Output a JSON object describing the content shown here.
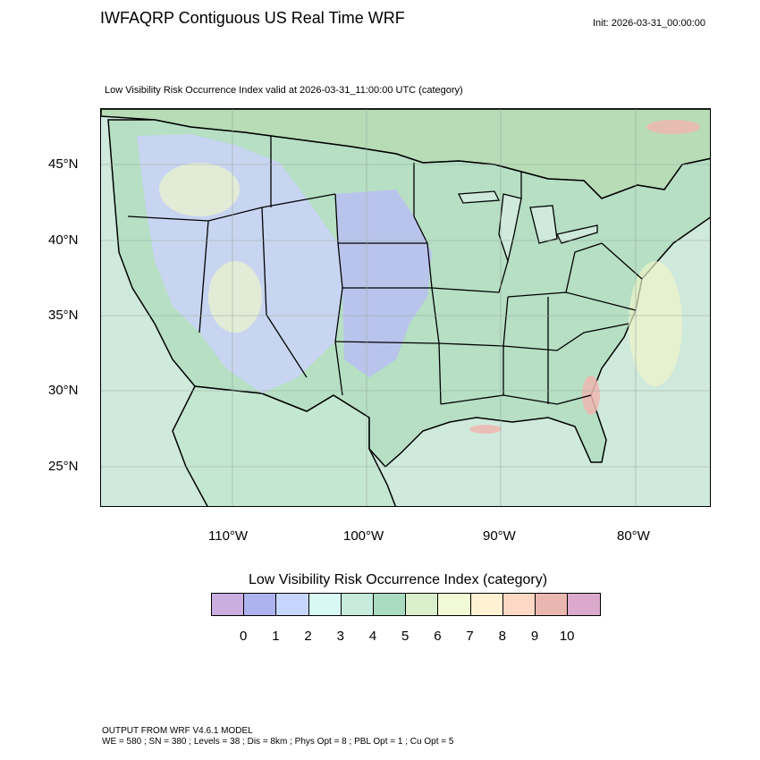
{
  "header": {
    "title": "IWFAQRP Contiguous US Real Time WRF",
    "init": "Init: 2026-03-31_00:00:00",
    "subtitle": "Low Visibility Risk Occurrence Index valid at 2026-03-31_11:00:00 UTC   (category)"
  },
  "map": {
    "lat_labels": [
      "45°N",
      "40°N",
      "35°N",
      "30°N",
      "25°N"
    ],
    "lon_labels": [
      "110°W",
      "100°W",
      "90°W",
      "80°W"
    ],
    "colors": {
      "ocean": "#cfe9dc",
      "land_base": "#b6dfc4",
      "west_blue": "#c9d4f6",
      "plains_purple": "#b9c1f1",
      "canada": "#b8dcb6",
      "mexico": "#c4e7d2",
      "terrain_yellow": "#eef3c9",
      "hotspot_red": "#f0b7b0",
      "border": "#000000"
    }
  },
  "legend": {
    "title": "Low Visibility Risk Occurrence Index  (category)",
    "ticks": [
      "0",
      "1",
      "2",
      "3",
      "4",
      "5",
      "6",
      "7",
      "8",
      "9",
      "10"
    ],
    "colors": [
      "#cbaee0",
      "#adb3ef",
      "#c6d6ff",
      "#d8f8f4",
      "#c7ebdc",
      "#a9dbc0",
      "#d9efcb",
      "#f2f9d7",
      "#fff2d3",
      "#fdd8c4",
      "#eab7b0",
      "#dba9cb"
    ]
  },
  "footer": {
    "line1": "OUTPUT FROM WRF V4.6.1 MODEL",
    "line2": "WE = 580 ; SN = 380 ; Levels = 38 ; Dis = 8km ; Phys Opt = 8 ; PBL Opt = 1 ; Cu Opt = 5"
  }
}
